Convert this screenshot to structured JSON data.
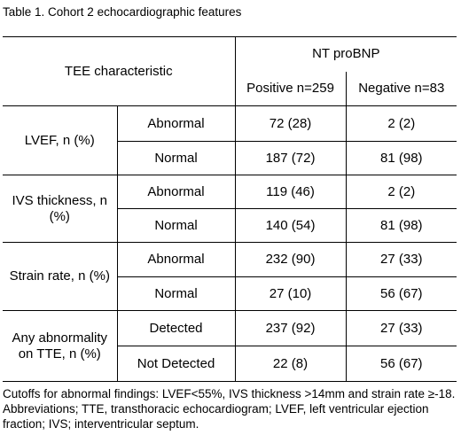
{
  "caption": "Table 1. Cohort 2 echocardiographic features",
  "header": {
    "tee_characteristic": "TEE characteristic",
    "nt_probnp": "NT proBNP",
    "positive": "Positive n=259",
    "negative": "Negative n=83"
  },
  "groups": [
    {
      "label": "LVEF, n (%)",
      "rows": [
        {
          "sub": "Abnormal",
          "positive": "72 (28)",
          "negative": "2 (2)"
        },
        {
          "sub": "Normal",
          "positive": "187 (72)",
          "negative": "81 (98)"
        }
      ]
    },
    {
      "label": "IVS thickness, n (%)",
      "rows": [
        {
          "sub": "Abnormal",
          "positive": "119 (46)",
          "negative": "2 (2)"
        },
        {
          "sub": "Normal",
          "positive": "140 (54)",
          "negative": "81 (98)"
        }
      ]
    },
    {
      "label": "Strain rate, n (%)",
      "rows": [
        {
          "sub": "Abnormal",
          "positive": "232 (90)",
          "negative": "27 (33)"
        },
        {
          "sub": "Normal",
          "positive": "27 (10)",
          "negative": "56 (67)"
        }
      ]
    },
    {
      "label": "Any abnormality on TTE, n (%)",
      "rows": [
        {
          "sub": "Detected",
          "positive": "237 (92)",
          "negative": "27 (33)"
        },
        {
          "sub": "Not Detected",
          "positive": "22 (8)",
          "negative": "56 (67)"
        }
      ]
    }
  ],
  "footnote": "Cutoffs for abnormal findings: LVEF<55%, IVS thickness >14mm and strain rate ≥-18. Abbreviations; TTE, transthoracic echocardiogram; LVEF, left ventricular ejection fraction; IVS; interventricular septum."
}
